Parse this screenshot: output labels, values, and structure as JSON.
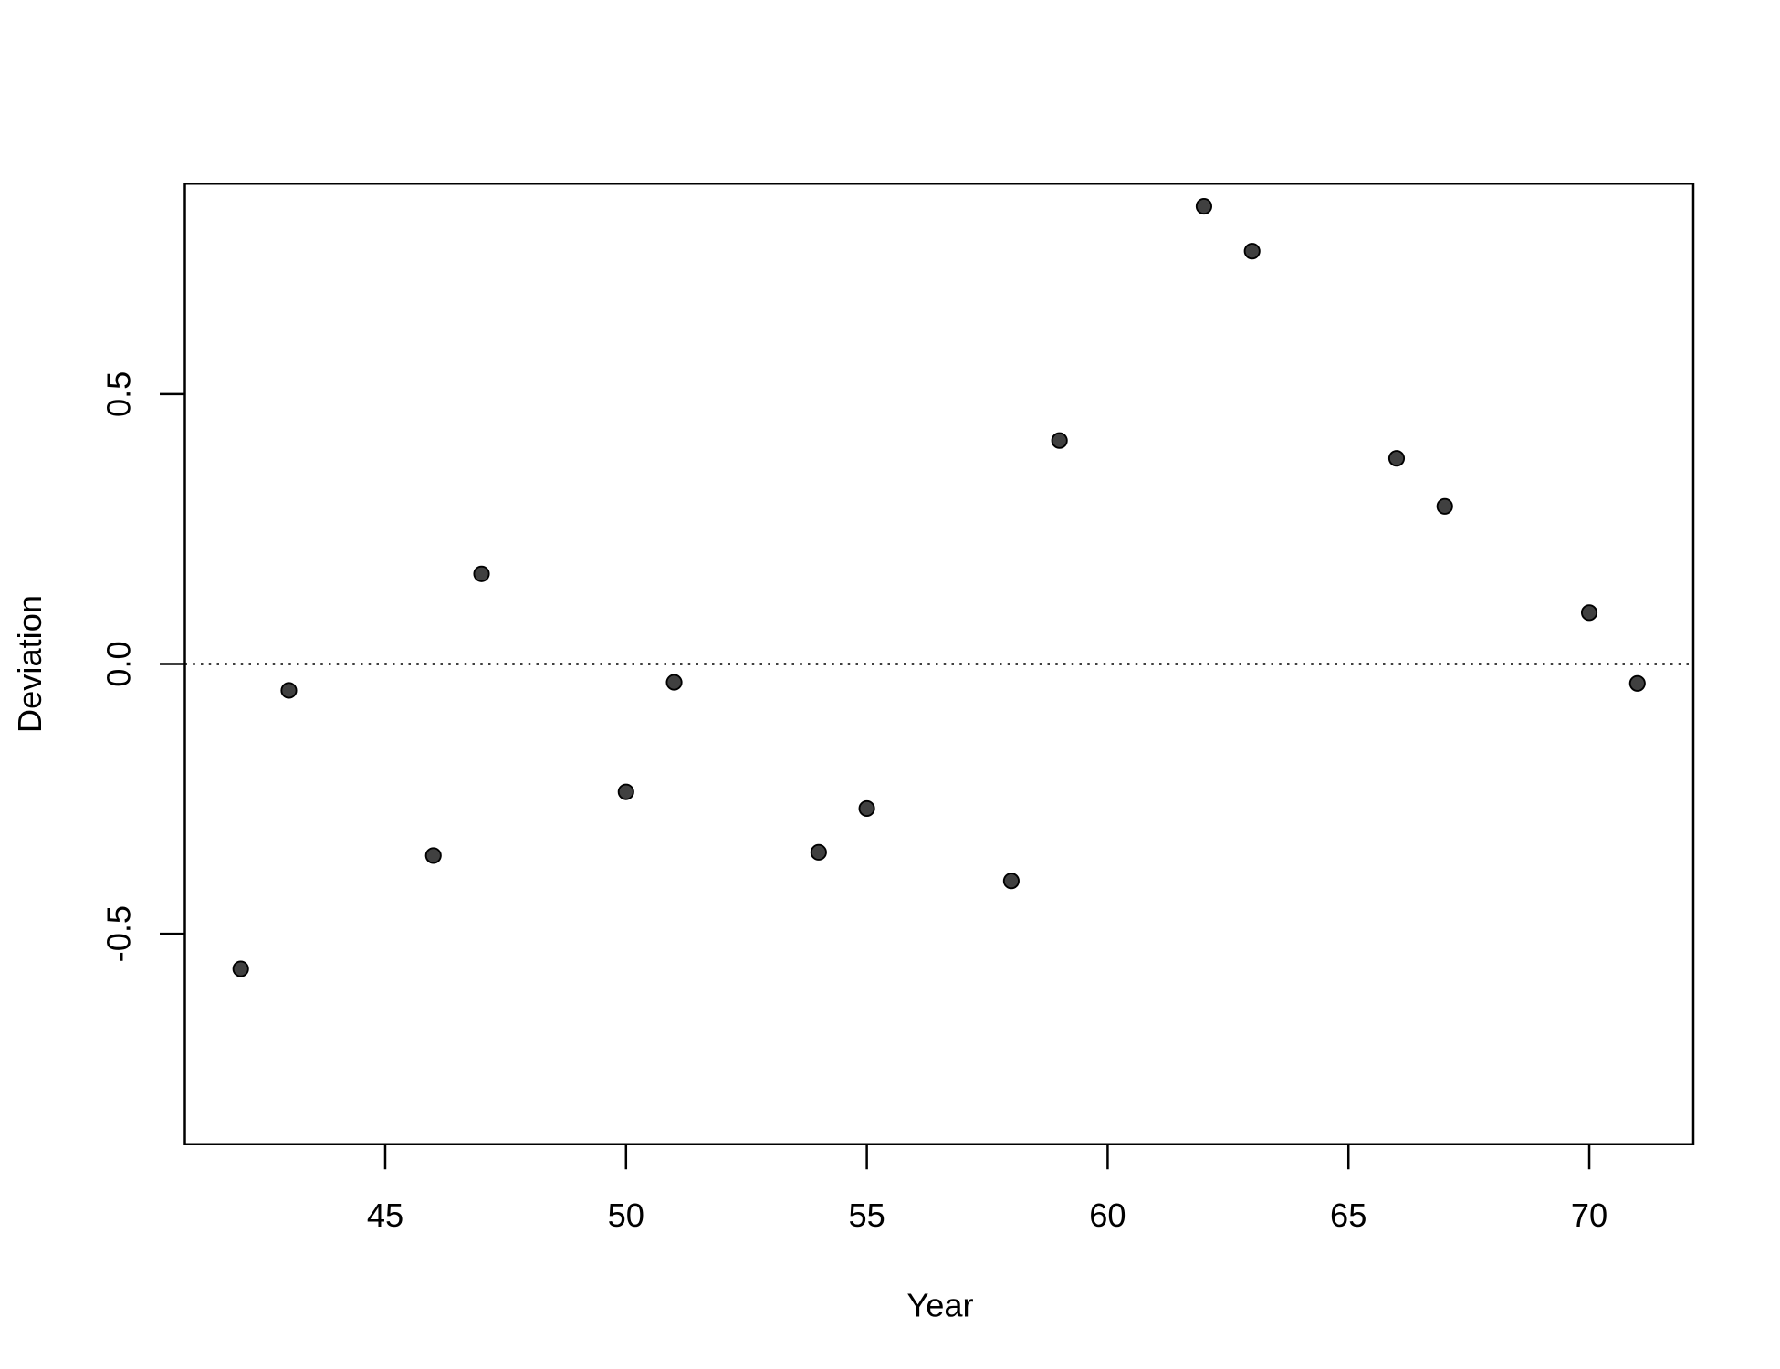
{
  "chart_data": {
    "type": "scatter",
    "x_label": "Year",
    "y_label": "Deviation",
    "x": [
      42,
      43,
      46,
      47,
      50,
      51,
      54,
      55,
      58,
      59,
      62,
      63,
      66,
      67,
      70,
      71
    ],
    "values": [
      -0.565,
      -0.049,
      -0.355,
      0.167,
      -0.237,
      -0.034,
      -0.349,
      -0.268,
      -0.402,
      0.414,
      0.848,
      0.765,
      0.381,
      0.292,
      0.095,
      -0.036
    ],
    "color": "#404040",
    "xlim": [
      40.84,
      72.16
    ],
    "xticks": [
      45,
      50,
      55,
      60,
      65,
      70
    ],
    "ylim": [
      -0.89,
      0.89
    ],
    "yticks": [
      {
        "value": -0.5,
        "label": "-0.5"
      },
      {
        "value": 0,
        "label": "0.0"
      },
      {
        "value": 0.5,
        "label": "0.5"
      }
    ],
    "hline": 0
  }
}
